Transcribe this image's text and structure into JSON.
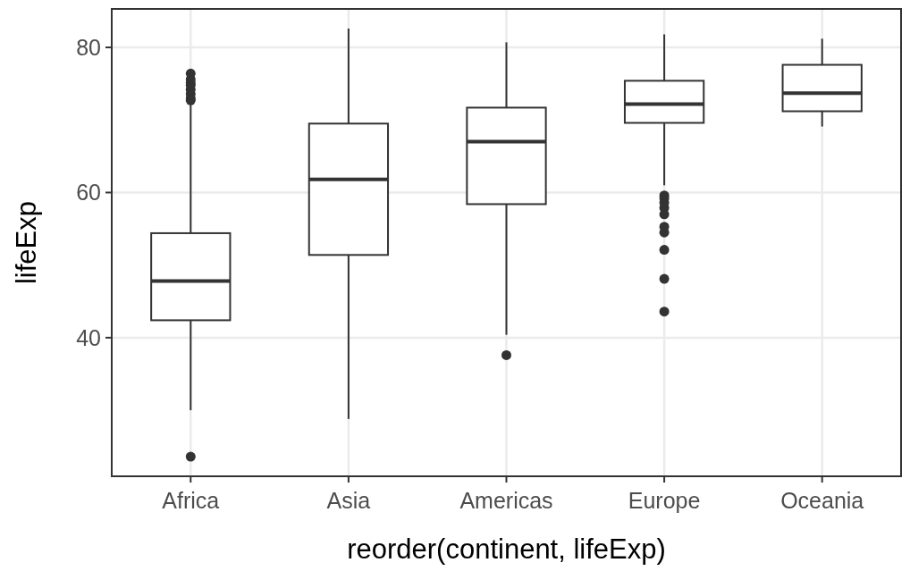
{
  "chart_data": {
    "type": "box",
    "xlabel": "reorder(continent, lifeExp)",
    "ylabel": "lifeExp",
    "categories": [
      "Africa",
      "Asia",
      "Americas",
      "Europe",
      "Oceania"
    ],
    "boxes": [
      {
        "low": 30.0,
        "q1": 42.4,
        "median": 47.8,
        "q3": 54.4,
        "high": 72.3,
        "outliers": [
          23.6,
          72.7,
          73.0,
          73.6,
          74.2,
          74.8,
          75.1,
          75.6,
          76.4
        ]
      },
      {
        "low": 28.8,
        "q1": 51.4,
        "median": 61.8,
        "q3": 69.5,
        "high": 82.6
      },
      {
        "low": 40.4,
        "q1": 58.4,
        "median": 67.0,
        "q3": 71.7,
        "high": 80.7,
        "outliers": [
          37.6
        ]
      },
      {
        "low": 61.0,
        "q1": 69.6,
        "median": 72.2,
        "q3": 75.4,
        "high": 81.8,
        "outliers": [
          43.6,
          48.1,
          52.1,
          54.5,
          55.3,
          57.0,
          57.9,
          58.6,
          59.2,
          59.6
        ]
      },
      {
        "low": 69.1,
        "q1": 71.2,
        "median": 73.7,
        "q3": 77.6,
        "high": 81.2
      }
    ],
    "color": "#333333",
    "ylim": [
      20.9,
      85.3
    ],
    "yticks": [
      40,
      60,
      80
    ],
    "grid": true
  }
}
